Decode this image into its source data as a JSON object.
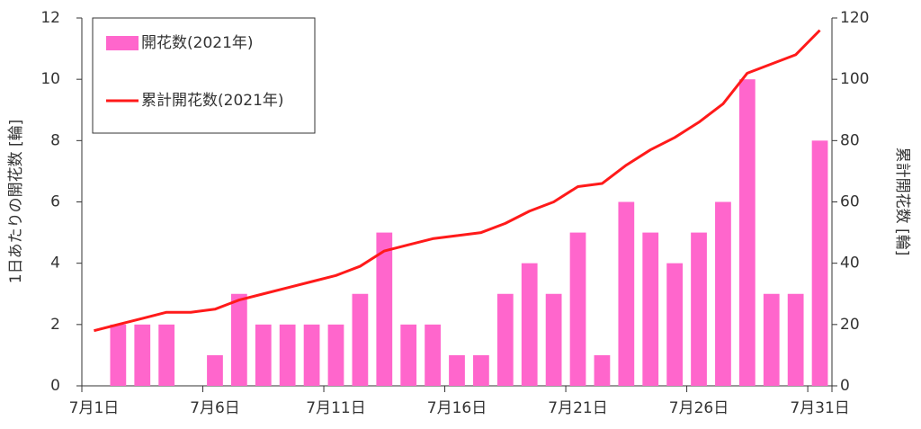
{
  "chart_data": {
    "type": "bar_line",
    "categories": [
      "7月1日",
      null,
      null,
      null,
      null,
      "7月6日",
      null,
      null,
      null,
      null,
      "7月11日",
      null,
      null,
      null,
      null,
      "7月16日",
      null,
      null,
      null,
      null,
      "7月21日",
      null,
      null,
      null,
      null,
      "7月26日",
      null,
      null,
      null,
      null,
      "7月31日"
    ],
    "series": [
      {
        "name": "開花数(2021年)",
        "type": "bar",
        "color": "#ff66cc",
        "values": [
          null,
          2,
          2,
          2,
          0,
          1,
          3,
          2,
          2,
          2,
          2,
          3,
          5,
          2,
          2,
          1,
          1,
          3,
          4,
          3,
          5,
          1,
          6,
          5,
          4,
          5,
          6,
          10,
          3,
          3,
          8
        ]
      },
      {
        "name": "累計開花数(2021年)",
        "type": "line",
        "axis": "y2",
        "color": "#ff1a1a",
        "values": [
          18,
          20,
          22,
          24,
          24,
          25,
          28,
          30,
          32,
          34,
          36,
          39,
          44,
          46,
          48,
          49,
          50,
          53,
          57,
          60,
          65,
          66,
          72,
          77,
          81,
          86,
          92,
          102,
          105,
          108,
          116
        ]
      }
    ],
    "ylabel": "1日あたりの開花数 [輪]",
    "y2label": "累計開花数 [輪]",
    "ylim": [
      0,
      12
    ],
    "yticks": [
      0,
      2,
      4,
      6,
      8,
      10,
      12
    ],
    "y2lim": [
      0,
      120
    ],
    "y2ticks": [
      0,
      20,
      40,
      60,
      80,
      100,
      120
    ],
    "legend": "upper left"
  }
}
